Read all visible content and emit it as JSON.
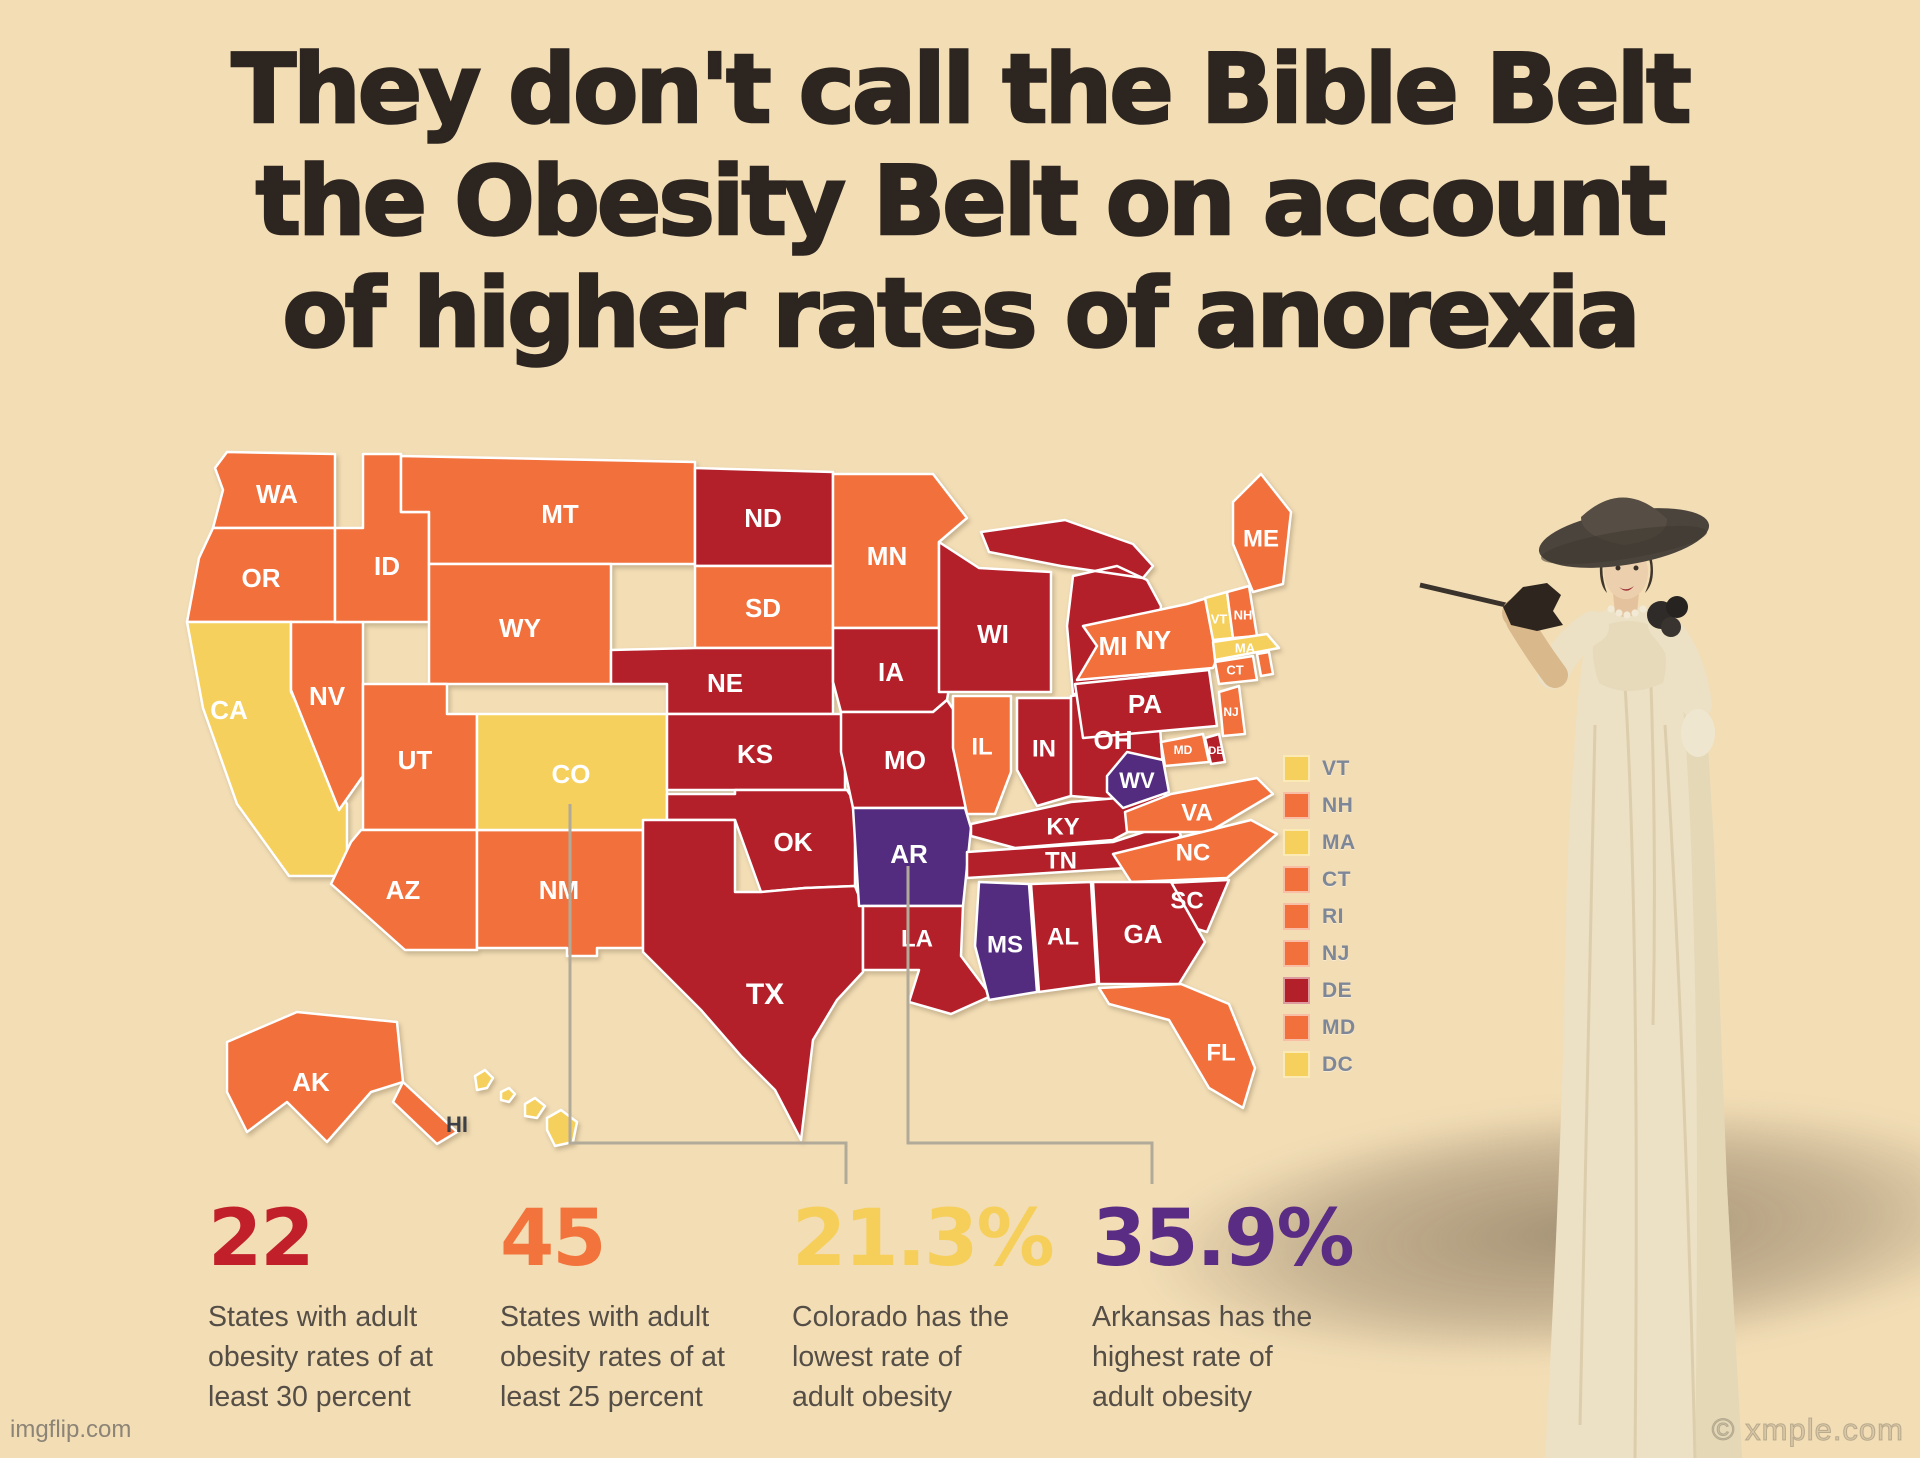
{
  "title": {
    "line1": "They don't call the Bible Belt",
    "line2": "the Obesity Belt on account",
    "line3": "of higher rates of anorexia"
  },
  "palette": {
    "yellow": "#f6d05c",
    "orange": "#f1703b",
    "red": "#b4202a",
    "purple": "#532c80",
    "background": "#f2ddb5"
  },
  "map": {
    "states": [
      {
        "code": "WA",
        "category": "orange"
      },
      {
        "code": "OR",
        "category": "orange"
      },
      {
        "code": "CA",
        "category": "yellow"
      },
      {
        "code": "NV",
        "category": "orange"
      },
      {
        "code": "ID",
        "category": "orange"
      },
      {
        "code": "MT",
        "category": "orange"
      },
      {
        "code": "WY",
        "category": "orange"
      },
      {
        "code": "UT",
        "category": "orange"
      },
      {
        "code": "AZ",
        "category": "orange"
      },
      {
        "code": "NM",
        "category": "orange"
      },
      {
        "code": "CO",
        "category": "yellow"
      },
      {
        "code": "ND",
        "category": "red"
      },
      {
        "code": "SD",
        "category": "orange"
      },
      {
        "code": "NE",
        "category": "red"
      },
      {
        "code": "KS",
        "category": "red"
      },
      {
        "code": "OK",
        "category": "red"
      },
      {
        "code": "TX",
        "category": "red"
      },
      {
        "code": "MN",
        "category": "orange"
      },
      {
        "code": "IA",
        "category": "red"
      },
      {
        "code": "MO",
        "category": "red"
      },
      {
        "code": "AR",
        "category": "purple"
      },
      {
        "code": "LA",
        "category": "red"
      },
      {
        "code": "WI",
        "category": "red"
      },
      {
        "code": "IL",
        "category": "orange"
      },
      {
        "code": "MI",
        "category": "red"
      },
      {
        "code": "IN",
        "category": "red"
      },
      {
        "code": "OH",
        "category": "red"
      },
      {
        "code": "KY",
        "category": "red"
      },
      {
        "code": "TN",
        "category": "red"
      },
      {
        "code": "WV",
        "category": "purple"
      },
      {
        "code": "PA",
        "category": "red"
      },
      {
        "code": "NY",
        "category": "orange"
      },
      {
        "code": "VA",
        "category": "orange"
      },
      {
        "code": "NC",
        "category": "orange"
      },
      {
        "code": "SC",
        "category": "red"
      },
      {
        "code": "GA",
        "category": "red"
      },
      {
        "code": "AL",
        "category": "red"
      },
      {
        "code": "MS",
        "category": "purple"
      },
      {
        "code": "FL",
        "category": "orange"
      },
      {
        "code": "ME",
        "category": "orange"
      },
      {
        "code": "VT",
        "category": "yellow"
      },
      {
        "code": "NH",
        "category": "orange"
      },
      {
        "code": "MA",
        "category": "yellow"
      },
      {
        "code": "CT",
        "category": "orange"
      },
      {
        "code": "RI",
        "category": "orange"
      },
      {
        "code": "NJ",
        "category": "orange"
      },
      {
        "code": "DE",
        "category": "red"
      },
      {
        "code": "MD",
        "category": "orange"
      },
      {
        "code": "AK",
        "category": "orange"
      },
      {
        "code": "HI",
        "category": "yellow"
      }
    ]
  },
  "legend": {
    "items": [
      {
        "code": "VT",
        "category": "yellow"
      },
      {
        "code": "NH",
        "category": "orange"
      },
      {
        "code": "MA",
        "category": "yellow"
      },
      {
        "code": "CT",
        "category": "orange"
      },
      {
        "code": "RI",
        "category": "orange"
      },
      {
        "code": "NJ",
        "category": "orange"
      },
      {
        "code": "DE",
        "category": "red"
      },
      {
        "code": "MD",
        "category": "orange"
      },
      {
        "code": "DC",
        "category": "yellow"
      }
    ]
  },
  "stats": [
    {
      "value": "22",
      "color": "#c1202b",
      "caption": "States with adult\nobesity rates of at\nleast 30 percent"
    },
    {
      "value": "45",
      "color": "#f2743c",
      "caption": "States with adult\nobesity rates of at\nleast 25 percent"
    },
    {
      "value": "21.3%",
      "color": "#f6cf5b",
      "caption": "Colorado has the\nlowest rate of\nadult obesity"
    },
    {
      "value": "35.9%",
      "color": "#5b2c84",
      "caption": "Arkansas has the\nhighest rate of\nadult obesity"
    }
  ],
  "watermarks": {
    "left": "imgflip.com",
    "right": "© xmple.com"
  }
}
